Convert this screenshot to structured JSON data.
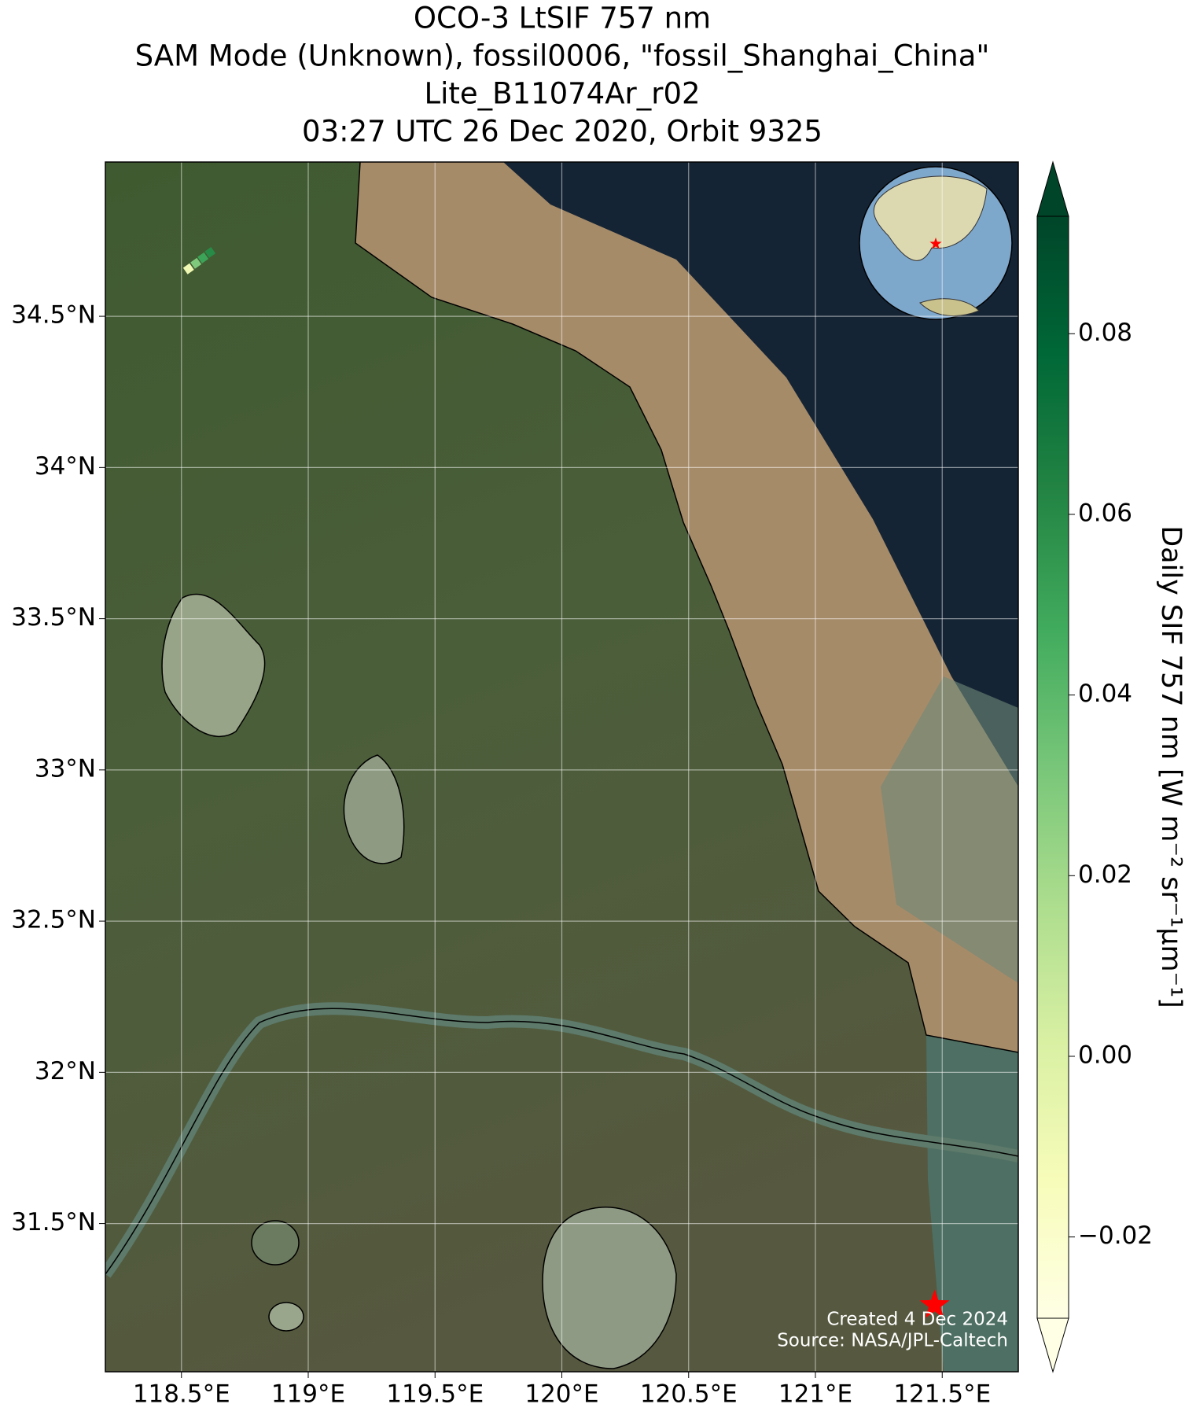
{
  "chart_data": {
    "type": "map",
    "title": [
      "OCO-3 LtSIF 757 nm",
      "SAM Mode (Unknown), fossil0006, \"fossil_Shanghai_China\"",
      "Lite_B11074Ar_r02",
      "03:27 UTC 26 Dec 2020, Orbit 9325"
    ],
    "x": [
      118.528,
      118.557,
      118.585,
      118.613
    ],
    "y": [
      34.657,
      34.675,
      34.693,
      34.711
    ],
    "values": [
      -0.01,
      0.03,
      0.05,
      0.06
    ],
    "xlim": [
      118.2,
      121.8
    ],
    "ylim": [
      31.01,
      35.01
    ],
    "xticks": [
      {
        "value": 118.5,
        "label": "118.5°E"
      },
      {
        "value": 119,
        "label": "119°E"
      },
      {
        "value": 119.5,
        "label": "119.5°E"
      },
      {
        "value": 120,
        "label": "120°E"
      },
      {
        "value": 120.5,
        "label": "120.5°E"
      },
      {
        "value": 121,
        "label": "121°E"
      },
      {
        "value": 121.5,
        "label": "121.5°E"
      }
    ],
    "yticks": [
      {
        "value": 31.5,
        "label": "31.5°N"
      },
      {
        "value": 32,
        "label": "32°N"
      },
      {
        "value": 32.5,
        "label": "32.5°N"
      },
      {
        "value": 33,
        "label": "33°N"
      },
      {
        "value": 33.5,
        "label": "33.5°N"
      },
      {
        "value": 34,
        "label": "34°N"
      },
      {
        "value": 34.5,
        "label": "34.5°N"
      }
    ],
    "grid": true,
    "colorbar": {
      "label": "Daily SIF 757 nm [W m⁻² sr⁻¹µm⁻¹]",
      "clim": [
        -0.029,
        0.093
      ],
      "extend": "both",
      "ticks": [
        {
          "value": -0.02,
          "label": "−0.02"
        },
        {
          "value": 0,
          "label": "0.00"
        },
        0.02,
        0.04,
        0.06,
        0.08
      ]
    },
    "target": {
      "x": 121.47,
      "y": 31.23,
      "color": "#ff0000"
    },
    "annotations": [
      "Created 4 Dec 2024",
      "Source: NASA/JPL-Caltech"
    ]
  }
}
